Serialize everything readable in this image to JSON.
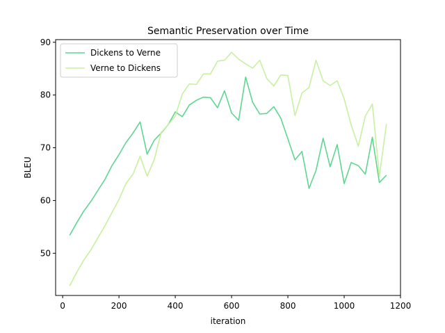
{
  "chart_data": {
    "type": "line",
    "title": "Semantic Preservation over Time",
    "xlabel": "iteration",
    "ylabel": "BLEU",
    "xlim": [
      -25,
      1200
    ],
    "ylim": [
      42,
      90.5
    ],
    "xticks": [
      0,
      200,
      400,
      600,
      800,
      1000,
      1200
    ],
    "yticks": [
      50,
      60,
      70,
      80,
      90
    ],
    "legend_position": "upper-left",
    "x": [
      25,
      50,
      75,
      100,
      125,
      150,
      175,
      200,
      225,
      250,
      275,
      300,
      325,
      350,
      375,
      400,
      425,
      450,
      475,
      500,
      525,
      550,
      575,
      600,
      625,
      650,
      675,
      700,
      725,
      750,
      775,
      800,
      825,
      850,
      875,
      900,
      925,
      950,
      975,
      1000,
      1025,
      1050,
      1075,
      1100,
      1125,
      1150
    ],
    "series": [
      {
        "name": "Dickens to Verne",
        "color": "#5dd690",
        "values": [
          53.4,
          55.8,
          58.0,
          59.8,
          61.9,
          64.0,
          66.6,
          68.7,
          71.0,
          72.8,
          74.9,
          68.8,
          71.4,
          72.8,
          74.4,
          76.8,
          75.9,
          78.1,
          79.0,
          79.6,
          79.5,
          77.6,
          80.8,
          76.6,
          75.2,
          83.4,
          78.6,
          76.4,
          76.5,
          77.8,
          75.6,
          71.7,
          67.7,
          69.3,
          62.3,
          65.7,
          71.8,
          66.4,
          70.6,
          63.2,
          67.2,
          66.6,
          65.0,
          72.0,
          63.4,
          64.8
        ]
      },
      {
        "name": "Verne to Dickens",
        "color": "#c8f0a0",
        "values": [
          43.8,
          46.4,
          48.7,
          50.6,
          52.9,
          55.2,
          57.7,
          60.2,
          63.2,
          65.0,
          68.4,
          64.6,
          67.7,
          72.9,
          74.4,
          76.0,
          80.2,
          82.1,
          82.0,
          84.0,
          84.0,
          86.4,
          86.6,
          88.1,
          86.8,
          85.9,
          85.1,
          86.6,
          83.1,
          81.7,
          83.8,
          83.7,
          76.1,
          80.4,
          81.4,
          86.6,
          82.7,
          81.8,
          82.7,
          79.3,
          74.3,
          70.3,
          76.0,
          78.3,
          64.6,
          74.5
        ]
      }
    ]
  }
}
